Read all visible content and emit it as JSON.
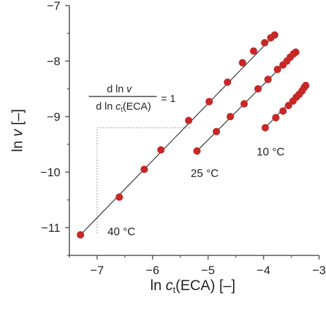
{
  "chart_data": {
    "type": "scatter",
    "xlabel": {
      "prefix": "ln ",
      "var": "c",
      "sub": "t",
      "suffix": "(ECA) [–]"
    },
    "ylabel": {
      "prefix": "ln ",
      "var": "v",
      "suffix": " [–]"
    },
    "xlim": [
      -7.5,
      -3
    ],
    "ylim": [
      -11.5,
      -7
    ],
    "x_ticks": [
      -7,
      -6,
      -5,
      -4,
      -3
    ],
    "x_tick_labels": [
      "−7",
      "−6",
      "−5",
      "−4",
      "−3"
    ],
    "y_ticks": [
      -11,
      -10,
      -9,
      -8,
      -7
    ],
    "y_tick_labels": [
      "−11",
      "−10",
      "−9",
      "−8",
      "−7"
    ],
    "grid": false,
    "annotation": {
      "numerator": {
        "prefix": "d ln ",
        "var": "v"
      },
      "denominator": {
        "prefix": "d ln ",
        "var": "c",
        "sub": "t",
        "suffix": "(ECA)"
      },
      "equals": "= 1"
    },
    "marker_color": "#c62828",
    "line_color": "#333333",
    "guide_color": "#999999",
    "slope_triangle": {
      "x_from": -7,
      "x_to": -5.3,
      "y_low": -11.1,
      "y_high": -9.2
    },
    "series": [
      {
        "label": "40 °C",
        "x": [
          -7.3,
          -6.6,
          -6.15,
          -5.85,
          -5.35,
          -4.98,
          -4.65,
          -4.38,
          -4.18,
          -3.98,
          -3.87,
          -3.8
        ],
        "y": [
          -11.13,
          -10.45,
          -9.95,
          -9.6,
          -9.07,
          -8.73,
          -8.38,
          -8.03,
          -7.82,
          -7.67,
          -7.58,
          -7.53
        ],
        "trend": [
          [
            -7.3,
            -11.13
          ],
          [
            -3.8,
            -7.53
          ]
        ]
      },
      {
        "label": "25 °C",
        "x": [
          -5.2,
          -4.85,
          -4.6,
          -4.35,
          -4.1,
          -3.92,
          -3.75,
          -3.65,
          -3.58,
          -3.52,
          -3.46,
          -3.42
        ],
        "y": [
          -9.62,
          -9.27,
          -9.0,
          -8.77,
          -8.5,
          -8.33,
          -8.15,
          -8.07,
          -8.0,
          -7.93,
          -7.87,
          -7.84
        ],
        "trend": [
          [
            -5.2,
            -9.62
          ],
          [
            -3.42,
            -7.84
          ]
        ]
      },
      {
        "label": "10 °C",
        "x": [
          -3.97,
          -3.78,
          -3.65,
          -3.55,
          -3.47,
          -3.41,
          -3.36,
          -3.31,
          -3.27,
          -3.24
        ],
        "y": [
          -9.2,
          -9.02,
          -8.9,
          -8.8,
          -8.72,
          -8.65,
          -8.6,
          -8.54,
          -8.48,
          -8.44
        ],
        "trend": [
          [
            -3.97,
            -9.2
          ],
          [
            -3.24,
            -8.44
          ]
        ]
      }
    ]
  }
}
